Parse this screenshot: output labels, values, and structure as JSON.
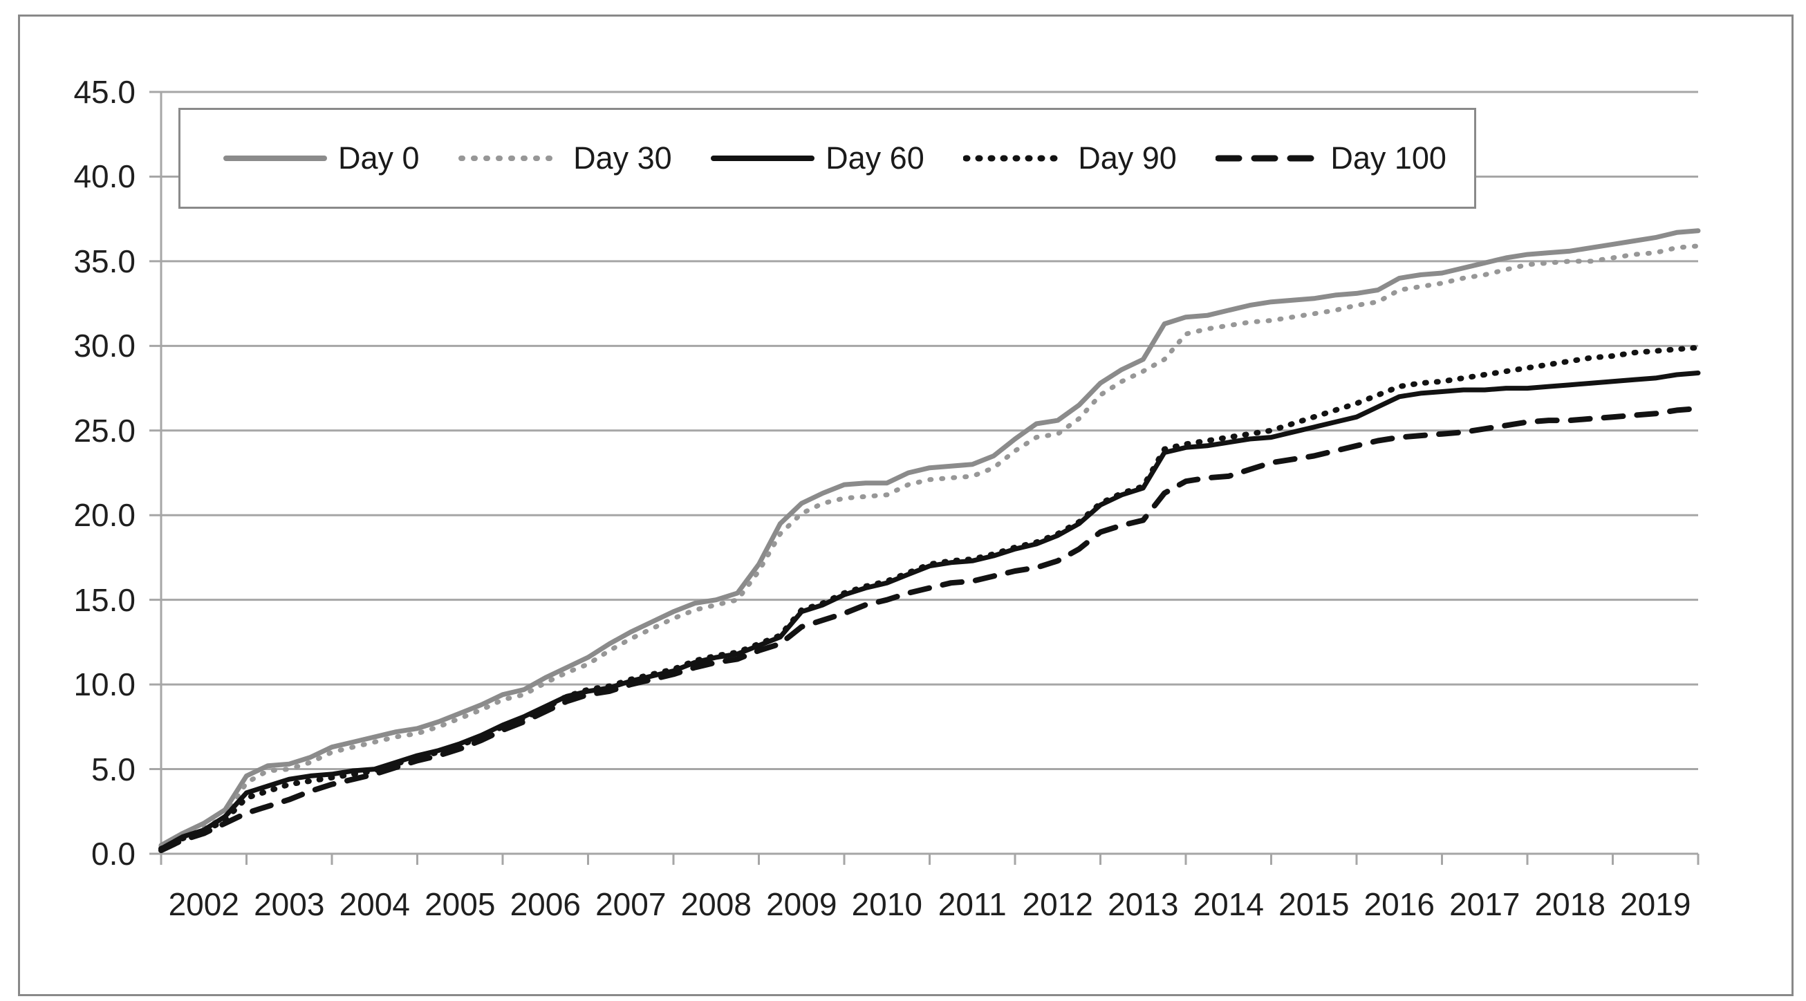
{
  "figure": {
    "background": "#ffffff",
    "border_color": "#898989"
  },
  "chart_data": {
    "type": "line",
    "title": "",
    "xlabel": "",
    "ylabel": "",
    "grid": true,
    "legend_position": "top-inside",
    "colors": {
      "gridline": "#a6a6a6",
      "axis": "#a6a6a6",
      "tick_text": "#1f1f1f"
    },
    "x_axis": {
      "range": [
        2002,
        2020
      ],
      "tick_labels": [
        "2002",
        "2003",
        "2004",
        "2005",
        "2006",
        "2007",
        "2008",
        "2009",
        "2010",
        "2011",
        "2012",
        "2013",
        "2014",
        "2015",
        "2016",
        "2017",
        "2018",
        "2019"
      ]
    },
    "y_axis": {
      "range": [
        0,
        45
      ],
      "tick_labels": [
        "0.0",
        "5.0",
        "10.0",
        "15.0",
        "20.0",
        "25.0",
        "30.0",
        "35.0",
        "40.0",
        "45.0"
      ]
    },
    "x_start": 2002.0,
    "x_step": 0.25,
    "series": [
      {
        "name": "Day 0",
        "color": "#8b8b8b",
        "line_style": "solid",
        "width": 7,
        "values": [
          0.5,
          1.2,
          1.8,
          2.6,
          4.6,
          5.2,
          5.3,
          5.7,
          6.3,
          6.6,
          6.9,
          7.2,
          7.4,
          7.8,
          8.3,
          8.8,
          9.4,
          9.7,
          10.4,
          11.0,
          11.6,
          12.4,
          13.1,
          13.7,
          14.3,
          14.8,
          15.0,
          15.4,
          17.1,
          19.5,
          20.7,
          21.3,
          21.8,
          21.9,
          21.9,
          22.5,
          22.8,
          22.9,
          23.0,
          23.5,
          24.5,
          25.4,
          25.6,
          26.5,
          27.8,
          28.6,
          29.2,
          31.3,
          31.7,
          31.8,
          32.1,
          32.4,
          32.6,
          32.7,
          32.8,
          33.0,
          33.1,
          33.3,
          34.0,
          34.2,
          34.3,
          34.6,
          34.9,
          35.2,
          35.4,
          35.5,
          35.6,
          35.8,
          36.0,
          36.2,
          36.4,
          36.7,
          36.8
        ]
      },
      {
        "name": "Day 30",
        "color": "#979797",
        "line_style": "dotted",
        "width": 7,
        "values": [
          0.4,
          1.0,
          1.5,
          2.2,
          4.2,
          4.9,
          5.0,
          5.4,
          6.0,
          6.3,
          6.6,
          6.9,
          7.1,
          7.5,
          8.0,
          8.5,
          9.1,
          9.4,
          10.1,
          10.7,
          11.2,
          12.0,
          12.7,
          13.3,
          13.9,
          14.4,
          14.7,
          15.0,
          16.7,
          18.9,
          20.1,
          20.7,
          21.0,
          21.1,
          21.2,
          21.8,
          22.1,
          22.2,
          22.3,
          22.8,
          23.8,
          24.6,
          24.8,
          25.7,
          27.1,
          27.9,
          28.5,
          29.2,
          30.7,
          31.0,
          31.2,
          31.4,
          31.5,
          31.7,
          31.9,
          32.1,
          32.4,
          32.6,
          33.3,
          33.5,
          33.7,
          34.0,
          34.2,
          34.5,
          34.8,
          34.9,
          35.0,
          35.0,
          35.2,
          35.4,
          35.5,
          35.8,
          35.9
        ]
      },
      {
        "name": "Day 60",
        "color": "#121212",
        "line_style": "solid",
        "width": 7,
        "values": [
          0.3,
          1.0,
          1.4,
          2.2,
          3.6,
          4.0,
          4.4,
          4.6,
          4.7,
          4.9,
          5.0,
          5.4,
          5.8,
          6.1,
          6.5,
          7.0,
          7.6,
          8.1,
          8.7,
          9.3,
          9.6,
          9.8,
          10.2,
          10.5,
          10.8,
          11.3,
          11.6,
          11.8,
          12.3,
          12.8,
          14.3,
          14.7,
          15.3,
          15.7,
          16.0,
          16.5,
          17.0,
          17.2,
          17.3,
          17.6,
          18.0,
          18.3,
          18.8,
          19.5,
          20.6,
          21.2,
          21.6,
          23.7,
          24.0,
          24.1,
          24.3,
          24.5,
          24.6,
          24.9,
          25.2,
          25.5,
          25.8,
          26.4,
          27.0,
          27.2,
          27.3,
          27.4,
          27.4,
          27.5,
          27.5,
          27.6,
          27.7,
          27.8,
          27.9,
          28.0,
          28.1,
          28.3,
          28.4
        ]
      },
      {
        "name": "Day 90",
        "color": "#121212",
        "line_style": "dotted",
        "width": 8,
        "values": [
          0.3,
          0.9,
          1.3,
          2.0,
          3.3,
          3.7,
          4.1,
          4.3,
          4.5,
          4.7,
          4.9,
          5.3,
          5.7,
          6.0,
          6.4,
          6.9,
          7.5,
          8.0,
          8.6,
          9.3,
          9.7,
          9.9,
          10.3,
          10.6,
          10.9,
          11.4,
          11.7,
          11.9,
          12.4,
          12.9,
          14.4,
          14.8,
          15.4,
          15.8,
          16.1,
          16.6,
          17.1,
          17.3,
          17.4,
          17.7,
          18.1,
          18.4,
          18.9,
          19.6,
          20.7,
          21.3,
          21.7,
          23.9,
          24.2,
          24.4,
          24.6,
          24.8,
          25.0,
          25.4,
          25.8,
          26.2,
          26.6,
          27.1,
          27.6,
          27.8,
          27.9,
          28.1,
          28.3,
          28.5,
          28.7,
          28.9,
          29.1,
          29.3,
          29.4,
          29.6,
          29.7,
          29.8,
          29.9
        ]
      },
      {
        "name": "Day 100",
        "color": "#121212",
        "line_style": "dashed",
        "width": 8,
        "values": [
          0.2,
          0.8,
          1.2,
          1.8,
          2.4,
          2.8,
          3.2,
          3.7,
          4.1,
          4.4,
          4.7,
          5.1,
          5.5,
          5.8,
          6.2,
          6.7,
          7.3,
          7.8,
          8.4,
          9.0,
          9.4,
          9.6,
          10.0,
          10.3,
          10.6,
          11.0,
          11.3,
          11.5,
          12.0,
          12.4,
          13.4,
          13.8,
          14.2,
          14.7,
          15.0,
          15.4,
          15.7,
          16.0,
          16.1,
          16.4,
          16.7,
          16.9,
          17.3,
          18.0,
          19.0,
          19.4,
          19.7,
          21.3,
          22.0,
          22.2,
          22.3,
          22.7,
          23.1,
          23.3,
          23.5,
          23.8,
          24.1,
          24.4,
          24.6,
          24.7,
          24.8,
          24.9,
          25.1,
          25.3,
          25.5,
          25.6,
          25.6,
          25.7,
          25.8,
          25.9,
          26.0,
          26.2,
          26.3
        ]
      }
    ]
  }
}
